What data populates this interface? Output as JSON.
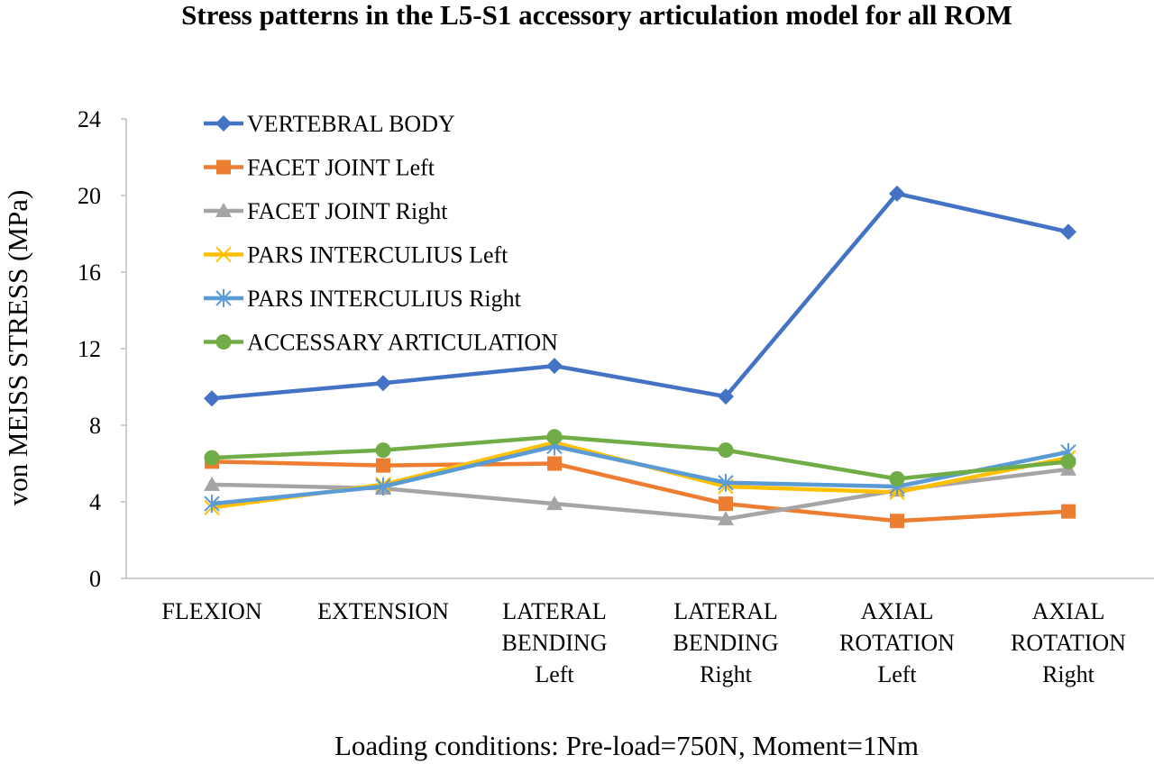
{
  "chart_data": {
    "type": "line",
    "title": "Stress patterns in the L5-S1 accessory articulation model for all ROM",
    "xlabel": "Loading conditions: Pre-load=750N, Moment=1Nm",
    "ylabel": "von MEISS STRESS (MPa)",
    "ylim": [
      0,
      24
    ],
    "yticks": [
      "0",
      "4",
      "8",
      "12",
      "16",
      "20",
      "24"
    ],
    "grid": false,
    "legend_position": "top-left",
    "categories": [
      [
        "FLEXION"
      ],
      [
        "EXTENSION"
      ],
      [
        "LATERAL",
        "BENDING",
        "Left"
      ],
      [
        "LATERAL",
        "BENDING",
        "Right"
      ],
      [
        "AXIAL",
        "ROTATION",
        "Left"
      ],
      [
        "AXIAL",
        "ROTATION",
        "Right"
      ]
    ],
    "series": [
      {
        "name": "VERTEBRAL BODY",
        "color": "#4472C4",
        "marker": "diamond",
        "values": [
          9.4,
          10.2,
          11.1,
          9.5,
          20.1,
          18.1
        ]
      },
      {
        "name": "FACET JOINT Left",
        "color": "#ED7D31",
        "marker": "square",
        "values": [
          6.1,
          5.9,
          6.0,
          3.9,
          3.0,
          3.5
        ]
      },
      {
        "name": "FACET JOINT Right",
        "color": "#A5A5A5",
        "marker": "triangle",
        "values": [
          4.9,
          4.7,
          3.9,
          3.1,
          4.6,
          5.7
        ]
      },
      {
        "name": "PARS INTERCULIUS Left",
        "color": "#FFC000",
        "marker": "x",
        "values": [
          3.7,
          4.9,
          7.1,
          4.8,
          4.5,
          6.3
        ]
      },
      {
        "name": "PARS INTERCULIUS Right",
        "color": "#5B9BD5",
        "marker": "star",
        "values": [
          3.9,
          4.8,
          6.9,
          5.0,
          4.8,
          6.6
        ]
      },
      {
        "name": "ACCESSARY ARTICULATION",
        "color": "#70AD47",
        "marker": "circle",
        "values": [
          6.3,
          6.7,
          7.4,
          6.7,
          5.2,
          6.1
        ]
      }
    ]
  }
}
